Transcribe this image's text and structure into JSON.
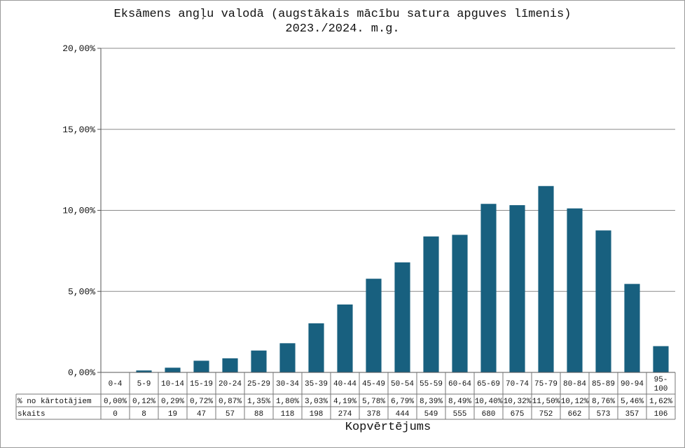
{
  "chart_data": {
    "type": "bar",
    "title": "Eksāmens angļu valodā (augstākais mācību satura apguves līmenis)",
    "subtitle": "2023./2024. m.g.",
    "xlabel": "Kopvērtējums",
    "ylabel": "",
    "ylim": [
      0,
      20
    ],
    "yticks": [
      "0,00%",
      "5,00%",
      "10,00%",
      "15,00%",
      "20,00%"
    ],
    "grid": true,
    "bar_color": "#18607f",
    "categories": [
      "0-4",
      "5-9",
      "10-14",
      "15-19",
      "20-24",
      "25-29",
      "30-34",
      "35-39",
      "40-44",
      "45-49",
      "50-54",
      "55-59",
      "60-64",
      "65-69",
      "70-74",
      "75-79",
      "80-84",
      "85-89",
      "90-94",
      "95-100"
    ],
    "series": [
      {
        "name": "% no kārtotājiem",
        "values": [
          0.0,
          0.12,
          0.29,
          0.72,
          0.87,
          1.35,
          1.8,
          3.03,
          4.19,
          5.78,
          6.79,
          8.39,
          8.49,
          10.4,
          10.32,
          11.5,
          10.12,
          8.76,
          5.46,
          1.62
        ],
        "labels": [
          "0,00%",
          "0,12%",
          "0,29%",
          "0,72%",
          "0,87%",
          "1,35%",
          "1,80%",
          "3,03%",
          "4,19%",
          "5,78%",
          "6,79%",
          "8,39%",
          "8,49%",
          "10,40%",
          "10,32%",
          "11,50%",
          "10,12%",
          "8,76%",
          "5,46%",
          "1,62%"
        ]
      }
    ],
    "table": {
      "rows": [
        {
          "label": "% no kārtotājiem",
          "series": 0
        },
        {
          "label": "skaits",
          "values": [
            0,
            8,
            19,
            47,
            57,
            88,
            118,
            198,
            274,
            378,
            444,
            549,
            555,
            680,
            675,
            752,
            662,
            573,
            357,
            106
          ]
        }
      ]
    }
  }
}
